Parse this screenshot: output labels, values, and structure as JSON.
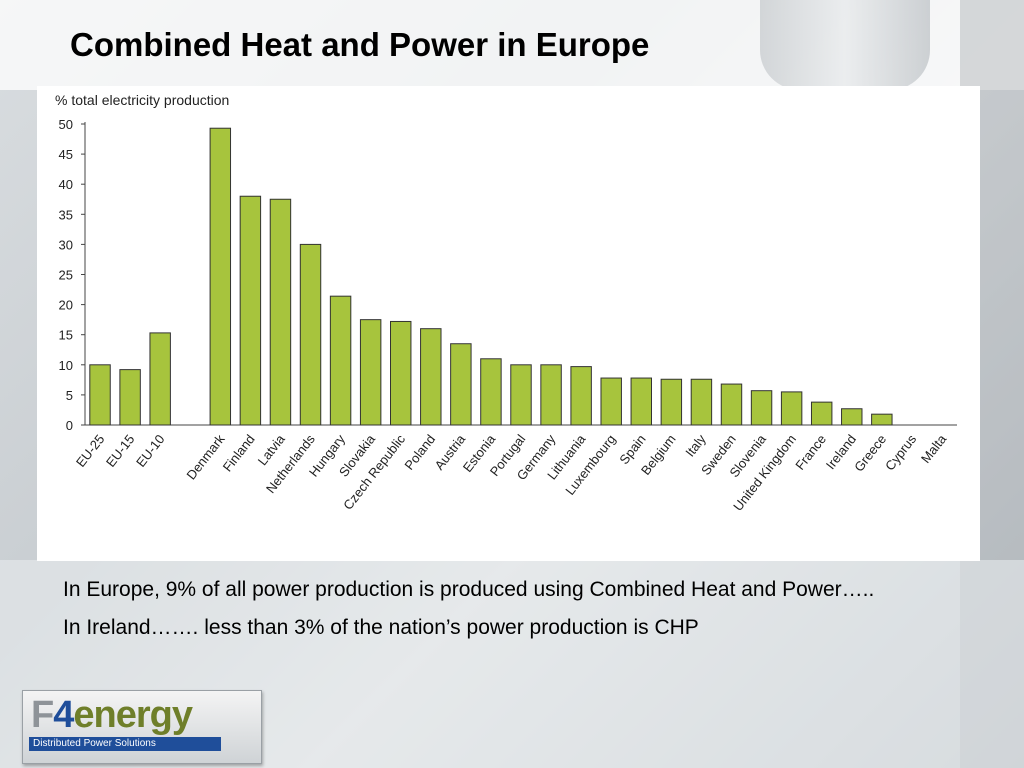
{
  "slide": {
    "title": "Combined Heat and Power in Europe",
    "paragraphs": [
      "In Europe, 9% of all power production is produced using Combined Heat and Power…..",
      "In Ireland……. less than 3% of the nation’s power production is CHP"
    ],
    "logo": {
      "word_part1": "F",
      "word_part2": "4",
      "word_part3": "energy",
      "tagline": "Distributed Power Solutions",
      "colors": {
        "f": "#8e9398",
        "four": "#1f4e9a",
        "energy": "#6f7f2a"
      }
    }
  },
  "chart_data": {
    "type": "bar",
    "title": "",
    "ylabel": "% total electricity production",
    "xlabel": "",
    "ylim": [
      0,
      50
    ],
    "yticks": [
      0,
      5,
      10,
      15,
      20,
      25,
      30,
      35,
      40,
      45,
      50
    ],
    "grid": false,
    "bar_color": "#a7c43d",
    "bar_edge_color": "#333333",
    "categories": [
      "EU-25",
      "EU-15",
      "EU-10",
      "",
      "Denmark",
      "Finland",
      "Latvia",
      "Netherlands",
      "Hungary",
      "Slovakia",
      "Czech Republic",
      "Poland",
      "Austria",
      "Estonia",
      "Portugal",
      "Germany",
      "Lithuania",
      "Luxembourg",
      "Spain",
      "Belgium",
      "Italy",
      "Sweden",
      "Slovenia",
      "United Kingdom",
      "France",
      "Ireland",
      "Greece",
      "Cyprus",
      "Malta"
    ],
    "values": [
      10,
      9.2,
      15.3,
      null,
      49.3,
      38,
      37.5,
      30,
      21.4,
      17.5,
      17.2,
      16,
      13.5,
      11,
      10,
      10,
      9.7,
      7.8,
      7.8,
      7.6,
      7.6,
      6.8,
      5.7,
      5.5,
      3.8,
      2.7,
      1.8,
      0,
      0
    ]
  }
}
